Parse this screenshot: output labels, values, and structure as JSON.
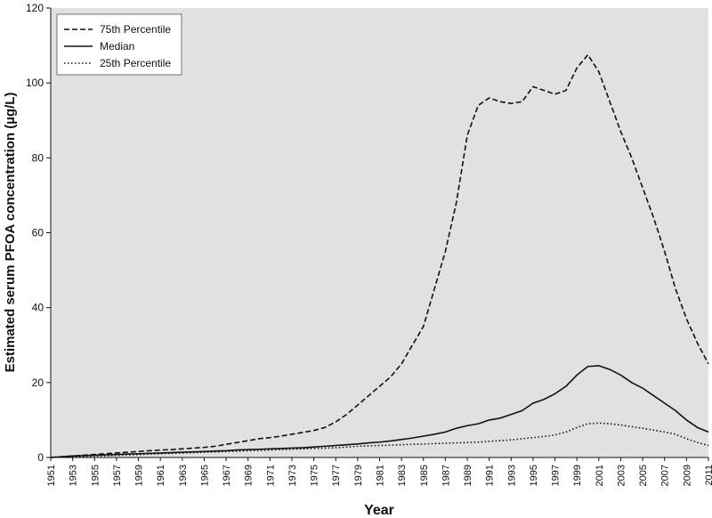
{
  "chart_data": {
    "type": "line",
    "title": "",
    "xlabel": "Year",
    "ylabel": "Estimated serum PFOA concentration (µg/L)",
    "xlim": [
      1951,
      2011
    ],
    "ylim": [
      0,
      120
    ],
    "yticks": [
      0,
      20,
      40,
      60,
      80,
      100,
      120
    ],
    "xticks": [
      "1951",
      "1953",
      "1955",
      "1957",
      "1959",
      "1961",
      "1963",
      "1965",
      "1967",
      "1969",
      "1971",
      "1973",
      "1975",
      "1977",
      "1979",
      "1981",
      "1983",
      "1985",
      "1987",
      "1989",
      "1991",
      "1993",
      "1995",
      "1997",
      "1999",
      "2001",
      "2003",
      "2005",
      "2007",
      "2009",
      "2011"
    ],
    "grid": false,
    "legend_position": "top-left",
    "x": [
      1951,
      1952,
      1953,
      1954,
      1955,
      1956,
      1957,
      1958,
      1959,
      1960,
      1961,
      1962,
      1963,
      1964,
      1965,
      1966,
      1967,
      1968,
      1969,
      1970,
      1971,
      1972,
      1973,
      1974,
      1975,
      1976,
      1977,
      1978,
      1979,
      1980,
      1981,
      1982,
      1983,
      1984,
      1985,
      1986,
      1987,
      1988,
      1989,
      1990,
      1991,
      1992,
      1993,
      1994,
      1995,
      1996,
      1997,
      1998,
      1999,
      2000,
      2001,
      2002,
      2003,
      2004,
      2005,
      2006,
      2007,
      2008,
      2009,
      2010,
      2011
    ],
    "series": [
      {
        "name": "75th Percentile",
        "style": "dashed",
        "values": [
          0,
          0.2,
          0.4,
          0.6,
          0.8,
          1.0,
          1.2,
          1.4,
          1.6,
          1.8,
          2.0,
          2.1,
          2.3,
          2.5,
          2.7,
          3.0,
          3.5,
          4.0,
          4.5,
          5.0,
          5.3,
          5.7,
          6.2,
          6.7,
          7.2,
          8.0,
          9.5,
          11.5,
          14.0,
          16.5,
          19.0,
          21.5,
          25.0,
          30.0,
          35.0,
          45.0,
          55.0,
          68.0,
          86.0,
          94.0,
          96.0,
          95.0,
          94.5,
          95.0,
          99.0,
          98.0,
          97.0,
          98.0,
          104.0,
          107.5,
          103.0,
          95.0,
          87.0,
          80.0,
          72.0,
          64.0,
          55.0,
          45.0,
          37.0,
          30.5,
          25.0
        ]
      },
      {
        "name": "Median",
        "style": "solid",
        "values": [
          0,
          0.2,
          0.4,
          0.5,
          0.6,
          0.7,
          0.8,
          0.9,
          1.0,
          1.1,
          1.2,
          1.3,
          1.4,
          1.5,
          1.6,
          1.7,
          1.8,
          2.0,
          2.1,
          2.2,
          2.3,
          2.4,
          2.5,
          2.6,
          2.8,
          3.0,
          3.2,
          3.4,
          3.6,
          3.9,
          4.1,
          4.4,
          4.8,
          5.2,
          5.7,
          6.2,
          6.8,
          7.8,
          8.5,
          9.0,
          10.0,
          10.5,
          11.5,
          12.5,
          14.5,
          15.5,
          17.0,
          19.0,
          22.0,
          24.3,
          24.5,
          23.5,
          22.0,
          20.0,
          18.5,
          16.5,
          14.5,
          12.5,
          10.0,
          8.0,
          6.8
        ]
      },
      {
        "name": "25th Percentile",
        "style": "dotted",
        "values": [
          0,
          0.1,
          0.2,
          0.3,
          0.4,
          0.5,
          0.6,
          0.7,
          0.8,
          0.9,
          1.0,
          1.1,
          1.2,
          1.3,
          1.4,
          1.5,
          1.6,
          1.7,
          1.8,
          1.9,
          2.0,
          2.1,
          2.2,
          2.3,
          2.4,
          2.5,
          2.6,
          2.8,
          3.0,
          3.1,
          3.2,
          3.3,
          3.4,
          3.5,
          3.6,
          3.7,
          3.8,
          3.9,
          4.0,
          4.1,
          4.3,
          4.5,
          4.7,
          5.0,
          5.3,
          5.6,
          6.0,
          6.8,
          8.0,
          9.0,
          9.2,
          9.0,
          8.7,
          8.2,
          7.8,
          7.3,
          6.8,
          6.2,
          5.0,
          4.0,
          3.2
        ]
      }
    ]
  }
}
